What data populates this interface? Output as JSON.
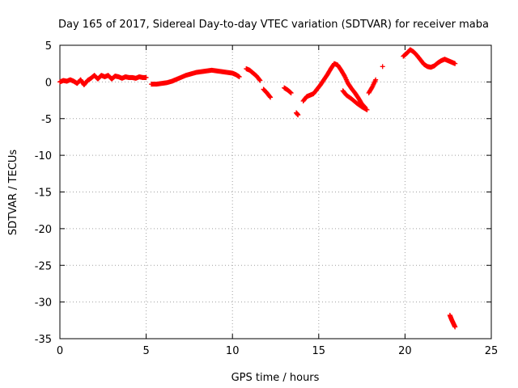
{
  "chart_data": {
    "type": "scatter",
    "title": "Day 165 of 2017, Sidereal Day-to-day VTEC variation (SDTVAR) for receiver maba",
    "xlabel": "GPS time / hours",
    "ylabel": "SDTVAR / TECUs",
    "xlim": [
      0,
      25
    ],
    "ylim": [
      -35,
      5
    ],
    "xticks": [
      0,
      5,
      10,
      15,
      20,
      25
    ],
    "yticks": [
      5,
      0,
      -5,
      -10,
      -15,
      -20,
      -25,
      -30,
      -35
    ],
    "grid": true,
    "marker": "+",
    "series": [
      {
        "name": "SDTVAR",
        "color": "#ff0000",
        "segments": [
          [
            [
              0.0,
              0.0
            ],
            [
              0.2,
              0.2
            ],
            [
              0.4,
              0.1
            ],
            [
              0.6,
              0.3
            ],
            [
              0.8,
              0.1
            ],
            [
              1.0,
              -0.2
            ],
            [
              1.2,
              0.3
            ],
            [
              1.4,
              -0.4
            ],
            [
              1.6,
              0.2
            ],
            [
              1.8,
              0.5
            ],
            [
              2.0,
              0.9
            ],
            [
              2.2,
              0.4
            ],
            [
              2.4,
              0.9
            ],
            [
              2.6,
              0.7
            ],
            [
              2.8,
              0.9
            ],
            [
              3.0,
              0.4
            ],
            [
              3.2,
              0.8
            ],
            [
              3.4,
              0.7
            ],
            [
              3.6,
              0.5
            ],
            [
              3.8,
              0.7
            ],
            [
              4.0,
              0.6
            ],
            [
              4.2,
              0.6
            ],
            [
              4.4,
              0.5
            ],
            [
              4.6,
              0.7
            ],
            [
              4.8,
              0.6
            ],
            [
              5.0,
              0.6
            ]
          ],
          [
            [
              5.3,
              -0.3
            ],
            [
              5.6,
              -0.3
            ],
            [
              5.9,
              -0.2
            ],
            [
              6.2,
              -0.1
            ],
            [
              6.5,
              0.1
            ],
            [
              6.7,
              0.3
            ],
            [
              7.0,
              0.6
            ],
            [
              7.3,
              0.9
            ],
            [
              7.6,
              1.1
            ],
            [
              7.9,
              1.3
            ],
            [
              8.2,
              1.4
            ],
            [
              8.5,
              1.5
            ],
            [
              8.8,
              1.6
            ],
            [
              9.1,
              1.5
            ],
            [
              9.4,
              1.4
            ],
            [
              9.7,
              1.3
            ],
            [
              10.0,
              1.2
            ],
            [
              10.2,
              1.0
            ],
            [
              10.4,
              0.7
            ]
          ],
          [
            [
              10.8,
              1.8
            ],
            [
              11.0,
              1.6
            ],
            [
              11.2,
              1.2
            ],
            [
              11.4,
              0.8
            ],
            [
              11.6,
              0.2
            ]
          ],
          [
            [
              11.8,
              -1.0
            ],
            [
              12.0,
              -1.5
            ],
            [
              12.2,
              -2.1
            ]
          ],
          [
            [
              13.0,
              -0.8
            ],
            [
              13.2,
              -1.1
            ],
            [
              13.4,
              -1.5
            ]
          ],
          [
            [
              13.7,
              -4.2
            ],
            [
              13.8,
              -4.5
            ]
          ],
          [
            [
              14.1,
              -2.6
            ],
            [
              14.3,
              -2.0
            ],
            [
              14.5,
              -1.8
            ],
            [
              14.7,
              -1.6
            ],
            [
              14.9,
              -1.0
            ],
            [
              15.1,
              -0.4
            ],
            [
              15.3,
              0.3
            ],
            [
              15.5,
              1.0
            ],
            [
              15.7,
              1.8
            ],
            [
              15.9,
              2.5
            ],
            [
              16.1,
              2.3
            ],
            [
              16.3,
              1.6
            ],
            [
              16.5,
              0.8
            ],
            [
              16.7,
              -0.2
            ],
            [
              16.9,
              -0.9
            ],
            [
              17.1,
              -1.5
            ],
            [
              17.3,
              -2.2
            ],
            [
              17.5,
              -3.0
            ],
            [
              17.7,
              -3.5
            ]
          ],
          [
            [
              16.4,
              -1.2
            ],
            [
              16.6,
              -1.8
            ],
            [
              16.9,
              -2.3
            ],
            [
              17.2,
              -2.9
            ],
            [
              17.5,
              -3.4
            ],
            [
              17.8,
              -3.8
            ]
          ],
          [
            [
              17.9,
              -1.5
            ],
            [
              18.1,
              -0.7
            ],
            [
              18.3,
              0.3
            ]
          ],
          [
            [
              18.7,
              2.1
            ]
          ],
          [
            [
              19.9,
              3.5
            ],
            [
              20.1,
              3.9
            ],
            [
              20.3,
              4.4
            ],
            [
              20.5,
              4.1
            ],
            [
              20.7,
              3.6
            ],
            [
              20.9,
              3.0
            ],
            [
              21.1,
              2.4
            ],
            [
              21.3,
              2.1
            ],
            [
              21.5,
              2.0
            ],
            [
              21.7,
              2.2
            ],
            [
              21.9,
              2.6
            ],
            [
              22.1,
              2.9
            ],
            [
              22.3,
              3.1
            ],
            [
              22.5,
              2.9
            ],
            [
              22.7,
              2.7
            ],
            [
              22.9,
              2.5
            ]
          ],
          [
            [
              22.6,
              -31.8
            ],
            [
              22.7,
              -32.4
            ],
            [
              22.8,
              -32.9
            ],
            [
              22.9,
              -33.4
            ]
          ]
        ]
      }
    ]
  }
}
